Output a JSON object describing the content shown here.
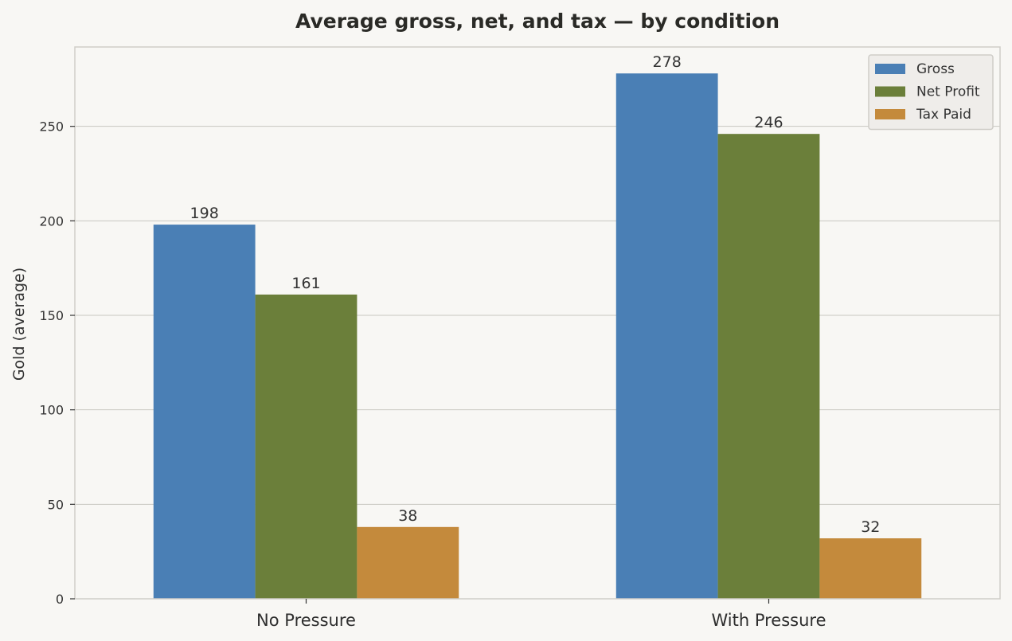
{
  "chart_data": {
    "type": "bar",
    "title": "Average gross, net, and tax — by condition",
    "xlabel": "",
    "ylabel": "Gold (average)",
    "categories": [
      "No Pressure",
      "With Pressure"
    ],
    "series": [
      {
        "name": "Gross",
        "values": [
          198,
          278
        ],
        "color": "#4a7fb5"
      },
      {
        "name": "Net Profit",
        "values": [
          161,
          246
        ],
        "color": "#6b7f3a"
      },
      {
        "name": "Tax Paid",
        "values": [
          38,
          32
        ],
        "color": "#c48a3c"
      }
    ],
    "ylim": [
      0,
      292
    ],
    "yticks": [
      0,
      50,
      100,
      150,
      200,
      250
    ],
    "grid": true,
    "legend_position": "top-right",
    "colors": {
      "background": "#f8f7f4",
      "grid": "#c9c7c1",
      "axes_border": "#cfcdc8",
      "legend_bg": "#efedea"
    }
  }
}
